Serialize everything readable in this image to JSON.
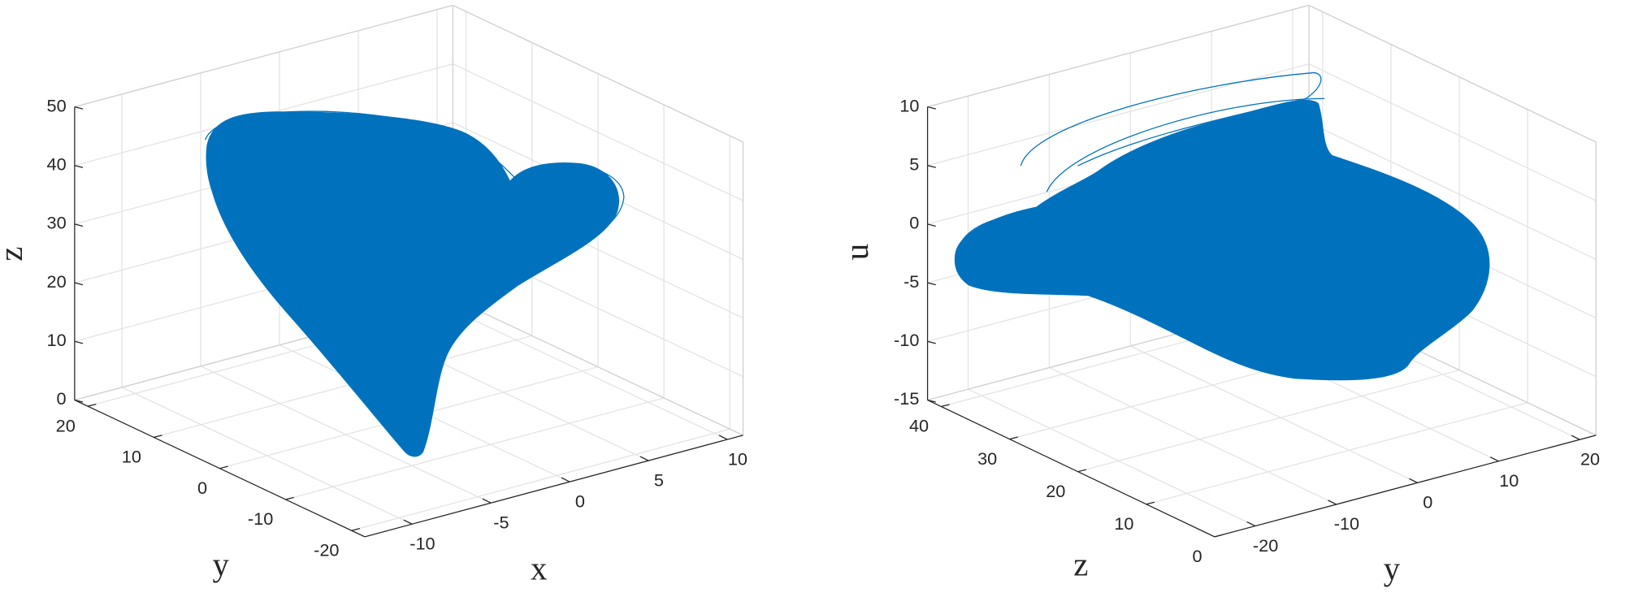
{
  "chart_data": [
    {
      "type": "line3d",
      "color": "#0072bd",
      "grid": true,
      "xlabel": "x",
      "ylabel": "y",
      "zlabel": "z",
      "xlim": [
        -13,
        11
      ],
      "ylim": [
        -22,
        22
      ],
      "zlim": [
        0,
        50
      ],
      "xticks": [
        -10,
        -5,
        0,
        5,
        10
      ],
      "yticks": [
        -20,
        -10,
        0,
        10,
        20
      ],
      "zticks": [
        0,
        10,
        20,
        30,
        40,
        50
      ]
    },
    {
      "type": "line3d",
      "color": "#0072bd",
      "grid": true,
      "xlabel": "y",
      "ylabel": "z",
      "zlabel": "u",
      "xlim": [
        -25,
        22
      ],
      "ylim": [
        0,
        42
      ],
      "zlim": [
        -15,
        10
      ],
      "xticks": [
        -20,
        -10,
        0,
        10,
        20
      ],
      "yticks": [
        0,
        10,
        20,
        30,
        40
      ],
      "zticks": [
        -15,
        -10,
        -5,
        0,
        5,
        10
      ]
    }
  ]
}
